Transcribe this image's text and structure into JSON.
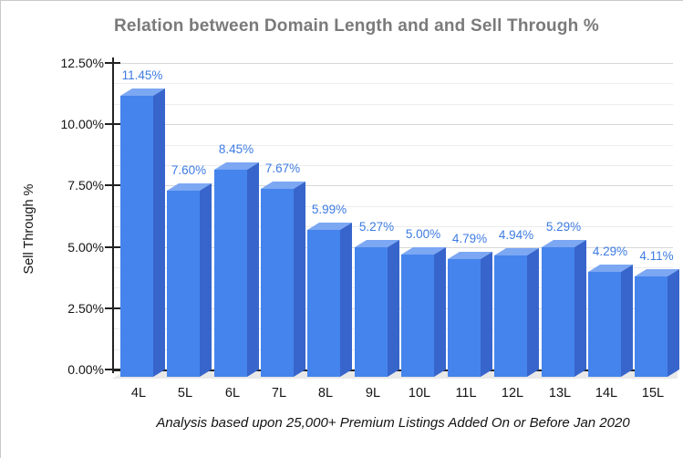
{
  "chart_data": {
    "type": "bar",
    "title": "Relation between Domain Length and and Sell Through %",
    "ylabel": "Sell Through %",
    "caption": "Analysis based upon 25,000+ Premium Listings Added On or Before Jan 2020",
    "categories": [
      "4L",
      "5L",
      "6L",
      "7L",
      "8L",
      "9L",
      "10L",
      "11L",
      "12L",
      "13L",
      "14L",
      "15L"
    ],
    "values": [
      11.45,
      7.6,
      8.45,
      7.67,
      5.99,
      5.27,
      5.0,
      4.79,
      4.94,
      5.29,
      4.29,
      4.11
    ],
    "value_labels": [
      "11.45%",
      "7.60%",
      "8.45%",
      "7.67%",
      "5.99%",
      "5.27%",
      "5.00%",
      "4.79%",
      "4.94%",
      "5.29%",
      "4.29%",
      "4.11%"
    ],
    "y_ticks": [
      {
        "value": 12.5,
        "label": "12.50%"
      },
      {
        "value": 10.0,
        "label": "10.00%"
      },
      {
        "value": 7.5,
        "label": "7.50%"
      },
      {
        "value": 5.0,
        "label": "5.00%"
      },
      {
        "value": 2.5,
        "label": "2.50%"
      },
      {
        "value": 0.0,
        "label": "0.00%"
      }
    ],
    "ylim": [
      0,
      12.5
    ],
    "grid": {
      "horizontal": true,
      "minor_per_major": 3
    },
    "legend": "none",
    "colors": {
      "bar_front": "#4584ec",
      "bar_top": "#7ca7f3",
      "bar_side": "#3765cb",
      "value_label": "#3d7be3",
      "title": "#7a7a7a",
      "axis_text": "#141414",
      "gridline_major": "#d7d7d7",
      "gridline_minor": "#ececec",
      "floor": "#e9e9e9",
      "axis_line": "#222222"
    }
  }
}
